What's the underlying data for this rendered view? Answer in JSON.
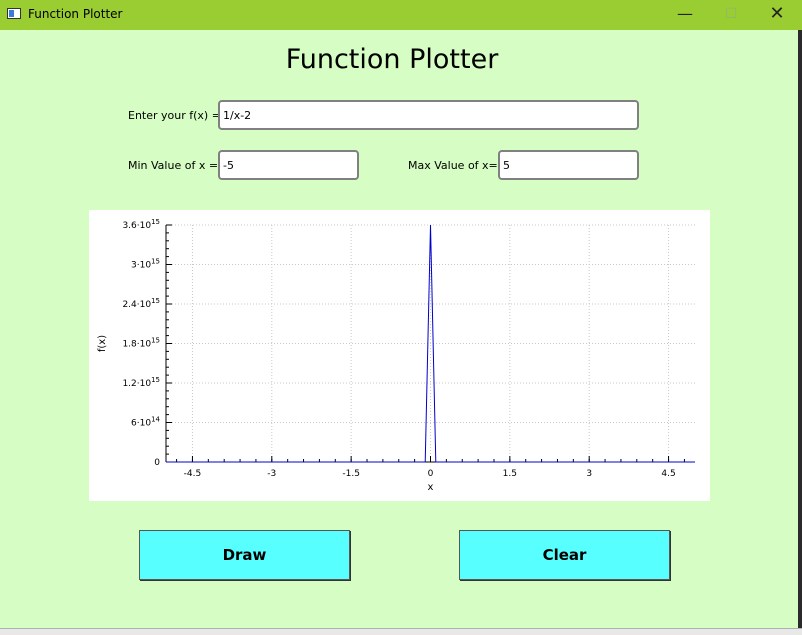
{
  "window": {
    "title": "Function Plotter",
    "minimize_glyph": "—",
    "maximize_glyph": "☐",
    "close_glyph": "✕"
  },
  "header": {
    "title": "Function Plotter"
  },
  "form": {
    "fx_label": "Enter your f(x) =",
    "fx_value": "1/x-2",
    "min_label": "Min Value of x =",
    "min_value": "-5",
    "max_label": "Max Value of x=",
    "max_value": "5"
  },
  "buttons": {
    "draw_label": "Draw",
    "clear_label": "Clear"
  },
  "colors": {
    "background": "#d5fdc4",
    "titlebar": "#9acd32",
    "button": "#58ffff",
    "plot_line": "#0000cc"
  },
  "chart_data": {
    "type": "line",
    "xlabel": "x",
    "ylabel": "f(x)",
    "xlim": [
      -5,
      5
    ],
    "ylim": [
      0,
      3600000000000000.0
    ],
    "x_ticks": [
      {
        "value": -4.5,
        "label": "-4.5"
      },
      {
        "value": -3,
        "label": "-3"
      },
      {
        "value": -1.5,
        "label": "-1.5"
      },
      {
        "value": 0,
        "label": "0"
      },
      {
        "value": 1.5,
        "label": "1.5"
      },
      {
        "value": 3,
        "label": "3"
      },
      {
        "value": 4.5,
        "label": "4.5"
      }
    ],
    "y_ticks": [
      {
        "value": 0,
        "base": "0",
        "exp": ""
      },
      {
        "value": 600000000000000.0,
        "base": "6·10",
        "exp": "14"
      },
      {
        "value": 1200000000000000.0,
        "base": "1.2·10",
        "exp": "15"
      },
      {
        "value": 1800000000000000.0,
        "base": "1.8·10",
        "exp": "15"
      },
      {
        "value": 2400000000000000.0,
        "base": "2.4·10",
        "exp": "15"
      },
      {
        "value": 3000000000000000.0,
        "base": "3·10",
        "exp": "15"
      },
      {
        "value": 3600000000000000.0,
        "base": "3.6·10",
        "exp": "15"
      }
    ],
    "grid": true,
    "series": [
      {
        "x": [
          -5,
          -0.1,
          0,
          0.1,
          5
        ],
        "y": [
          0,
          0,
          3600000000000000.0,
          0,
          0
        ]
      }
    ]
  }
}
